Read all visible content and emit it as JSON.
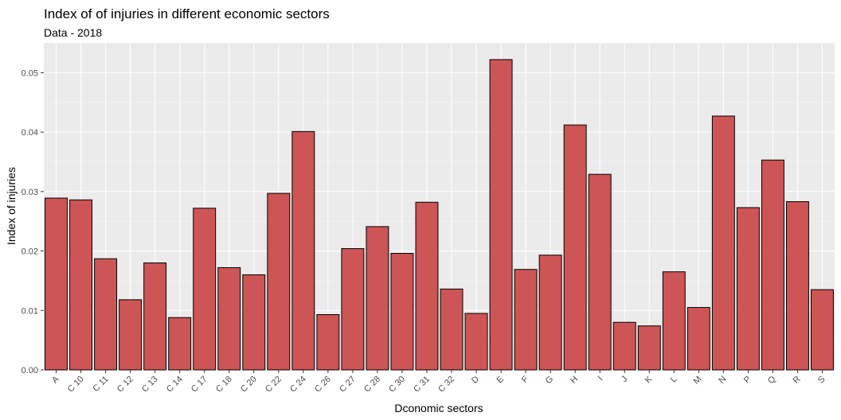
{
  "chart_data": {
    "type": "bar",
    "title": "Index of of injuries in different economic sectors",
    "subtitle": "Data - 2018",
    "xlabel": "Dconomic sectors",
    "ylabel": "Index of injuries",
    "ylim": [
      0,
      0.055
    ],
    "yticks": [
      "0.00",
      "0.01",
      "0.02",
      "0.03",
      "0.04",
      "0.05"
    ],
    "categories": [
      "A",
      "C 10",
      "C 11",
      "C 12",
      "C 13",
      "C 14",
      "C 17",
      "C 18",
      "C 20",
      "C 22",
      "C 24",
      "C 26",
      "C 27",
      "C 28",
      "C 30",
      "C 31",
      "C 32",
      "D",
      "E",
      "F",
      "G",
      "H",
      "I",
      "J",
      "K",
      "L",
      "M",
      "N",
      "P",
      "Q",
      "R",
      "S"
    ],
    "values": [
      0.0289,
      0.0286,
      0.0187,
      0.0118,
      0.018,
      0.0088,
      0.0272,
      0.0172,
      0.016,
      0.0297,
      0.0401,
      0.0093,
      0.0204,
      0.0241,
      0.0196,
      0.0282,
      0.0136,
      0.0095,
      0.0522,
      0.0169,
      0.0193,
      0.0412,
      0.0329,
      0.008,
      0.0074,
      0.0165,
      0.0105,
      0.0427,
      0.0273,
      0.0353,
      0.0283,
      0.0135
    ],
    "colors": {
      "bar_fill": "#cd5555",
      "bar_stroke": "#000000",
      "panel_bg": "#ebebeb",
      "grid_major": "#ffffff",
      "grid_minor": "#f5f5f5"
    },
    "grid": true,
    "legend": "none"
  }
}
